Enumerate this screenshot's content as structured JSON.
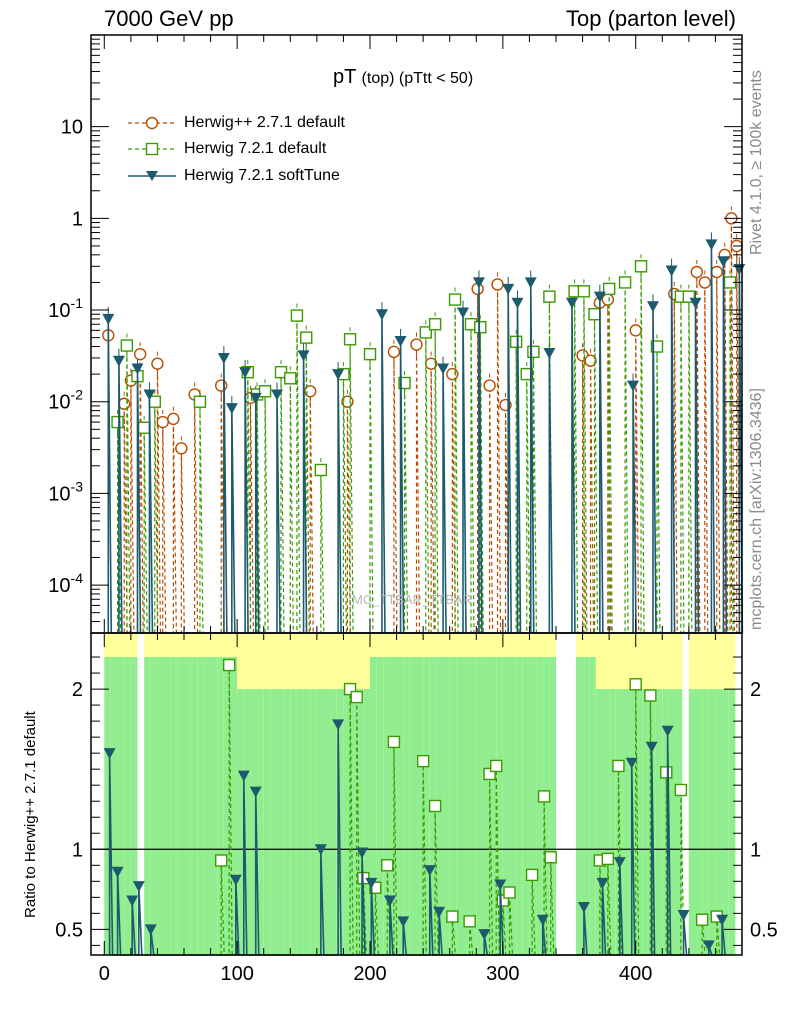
{
  "header": {
    "left": "7000 GeV pp",
    "right": "Top (parton level)"
  },
  "title": {
    "main": "pT",
    "sub": "(top) (pTtt < 50)"
  },
  "side_labels": {
    "rivet": "Rivet 4.1.0, ≥ 100k events",
    "mcplots": "mcplots.cern.ch [arXiv:1306.3436]",
    "watermark": "MC_TTBAR_TTBAR"
  },
  "colors": {
    "herwigpp": "#b84d00",
    "herwig721": "#3a9a00",
    "softtune": "#1d5a6d",
    "band_yellow": "#ffff99",
    "band_green": "#90ee90"
  },
  "chart_data": [
    {
      "type": "line",
      "title": "pT (top) (pTtt < 50)",
      "xlabel": "",
      "ylabel": "",
      "yscale": "log",
      "xlim": [
        -10,
        480
      ],
      "ylim": [
        3e-05,
        100
      ],
      "x_ticks": [
        0,
        100,
        200,
        300,
        400
      ],
      "y_tick_labels": [
        "10^{-4}",
        "10^{-3}",
        "10^{-2}",
        "10^{-1}",
        "1",
        "10"
      ],
      "legend": [
        "Herwig++ 2.7.1 default",
        "Herwig 7.2.1 default",
        "Herwig 7.2.1 softTune"
      ],
      "series": [
        {
          "name": "Herwig++ 2.7.1 default",
          "marker": "open-circle",
          "points": [
            [
              3,
              0.053
            ],
            [
              15,
              0.0095
            ],
            [
              20,
              0.017
            ],
            [
              27,
              0.033
            ],
            [
              40,
              0.026
            ],
            [
              44,
              0.006
            ],
            [
              52,
              0.0065
            ],
            [
              58,
              0.0031
            ],
            [
              68,
              0.012
            ],
            [
              88,
              0.015
            ],
            [
              110,
              0.011
            ],
            [
              155,
              0.013
            ],
            [
              183,
              0.01
            ],
            [
              218,
              0.035
            ],
            [
              235,
              0.042
            ],
            [
              246,
              0.026
            ],
            [
              262,
              0.02
            ],
            [
              281,
              0.17
            ],
            [
              290,
              0.015
            ],
            [
              296,
              0.19
            ],
            [
              302,
              0.0092
            ],
            [
              360,
              0.032
            ],
            [
              366,
              0.028
            ],
            [
              373,
              0.12
            ],
            [
              379,
              0.13
            ],
            [
              400,
              0.06
            ],
            [
              429,
              0.15
            ],
            [
              446,
              0.26
            ],
            [
              452,
              0.2
            ],
            [
              461,
              0.26
            ],
            [
              467,
              0.4
            ],
            [
              472,
              1.0
            ],
            [
              476,
              0.5
            ]
          ]
        },
        {
          "name": "Herwig 7.2.1 default",
          "marker": "open-square",
          "points": [
            [
              10,
              0.006
            ],
            [
              17,
              0.041
            ],
            [
              25,
              0.019
            ],
            [
              30,
              0.0052
            ],
            [
              38,
              0.01
            ],
            [
              72,
              0.01
            ],
            [
              108,
              0.021
            ],
            [
              115,
              0.012
            ],
            [
              121,
              0.013
            ],
            [
              133,
              0.021
            ],
            [
              140,
              0.018
            ],
            [
              145,
              0.087
            ],
            [
              152,
              0.05
            ],
            [
              163,
              0.0018
            ],
            [
              180,
              0.02
            ],
            [
              185,
              0.048
            ],
            [
              200,
              0.033
            ],
            [
              226,
              0.016
            ],
            [
              242,
              0.057
            ],
            [
              249,
              0.07
            ],
            [
              264,
              0.13
            ],
            [
              276,
              0.07
            ],
            [
              283,
              0.065
            ],
            [
              310,
              0.045
            ],
            [
              318,
              0.02
            ],
            [
              323,
              0.035
            ],
            [
              335,
              0.14
            ],
            [
              354,
              0.16
            ],
            [
              361,
              0.16
            ],
            [
              369,
              0.09
            ],
            [
              380,
              0.17
            ],
            [
              392,
              0.2
            ],
            [
              404,
              0.3
            ],
            [
              416,
              0.04
            ],
            [
              434,
              0.14
            ],
            [
              440,
              0.14
            ],
            [
              471,
              0.2
            ]
          ]
        },
        {
          "name": "Herwig 7.2.1 softTune",
          "marker": "filled-triangle-down",
          "points": [
            [
              3,
              0.08
            ],
            [
              11,
              0.028
            ],
            [
              25,
              0.023
            ],
            [
              34,
              0.012
            ],
            [
              90,
              0.03
            ],
            [
              96,
              0.0085
            ],
            [
              106,
              0.021
            ],
            [
              114,
              0.011
            ],
            [
              130,
              0.012
            ],
            [
              150,
              0.032
            ],
            [
              176,
              0.02
            ],
            [
              209,
              0.09
            ],
            [
              223,
              0.046
            ],
            [
              255,
              0.023
            ],
            [
              270,
              0.094
            ],
            [
              282,
              0.2
            ],
            [
              304,
              0.17
            ],
            [
              311,
              0.12
            ],
            [
              321,
              0.2
            ],
            [
              335,
              0.034
            ],
            [
              352,
              0.12
            ],
            [
              373,
              0.14
            ],
            [
              398,
              0.015
            ],
            [
              413,
              0.11
            ],
            [
              427,
              0.27
            ],
            [
              445,
              0.12
            ],
            [
              457,
              0.52
            ],
            [
              466,
              0.34
            ],
            [
              478,
              0.28
            ]
          ]
        }
      ]
    },
    {
      "type": "line",
      "title": "",
      "xlabel": "",
      "ylabel": "Ratio to Herwig++ 2.7.1 default",
      "xlim": [
        -10,
        480
      ],
      "ylim": [
        0.34,
        2.35
      ],
      "x_ticks": [
        0,
        100,
        200,
        300,
        400
      ],
      "y_ticks": [
        0.5,
        1,
        2
      ],
      "reference_line": 1,
      "series": [
        {
          "name": "Herwig 7.2.1 default",
          "marker": "open-square",
          "points": [
            [
              88,
              0.93
            ],
            [
              94,
              2.15
            ],
            [
              185,
              2.0
            ],
            [
              190,
              1.95
            ],
            [
              195,
              0.82
            ],
            [
              204,
              0.76
            ],
            [
              213,
              0.9
            ],
            [
              218,
              1.67
            ],
            [
              240,
              1.55
            ],
            [
              249,
              1.27
            ],
            [
              262,
              0.58
            ],
            [
              275,
              0.55
            ],
            [
              290,
              1.47
            ],
            [
              295,
              1.52
            ],
            [
              300,
              0.68
            ],
            [
              305,
              0.73
            ],
            [
              322,
              0.84
            ],
            [
              331,
              1.33
            ],
            [
              336,
              0.95
            ],
            [
              373,
              0.93
            ],
            [
              379,
              0.94
            ],
            [
              387,
              1.52
            ],
            [
              400,
              2.03
            ],
            [
              411,
              1.96
            ],
            [
              423,
              1.48
            ],
            [
              434,
              1.37
            ],
            [
              450,
              0.56
            ],
            [
              461,
              0.58
            ]
          ]
        },
        {
          "name": "Herwig 7.2.1 softTune",
          "marker": "filled-triangle-down",
          "points": [
            [
              4,
              1.6
            ],
            [
              10,
              0.86
            ],
            [
              21,
              0.68
            ],
            [
              26,
              0.77
            ],
            [
              35,
              0.5
            ],
            [
              99,
              0.81
            ],
            [
              105,
              1.46
            ],
            [
              114,
              1.36
            ],
            [
              163,
              1.0
            ],
            [
              176,
              1.78
            ],
            [
              194,
              0.98
            ],
            [
              201,
              0.79
            ],
            [
              215,
              0.68
            ],
            [
              225,
              0.55
            ],
            [
              245,
              0.87
            ],
            [
              252,
              0.61
            ],
            [
              286,
              0.47
            ],
            [
              298,
              0.78
            ],
            [
              330,
              0.56
            ],
            [
              361,
              0.64
            ],
            [
              375,
              0.79
            ],
            [
              388,
              0.92
            ],
            [
              397,
              1.54
            ],
            [
              412,
              1.64
            ],
            [
              424,
              1.74
            ],
            [
              436,
              0.59
            ],
            [
              455,
              0.4
            ],
            [
              465,
              0.56
            ]
          ]
        }
      ]
    }
  ]
}
